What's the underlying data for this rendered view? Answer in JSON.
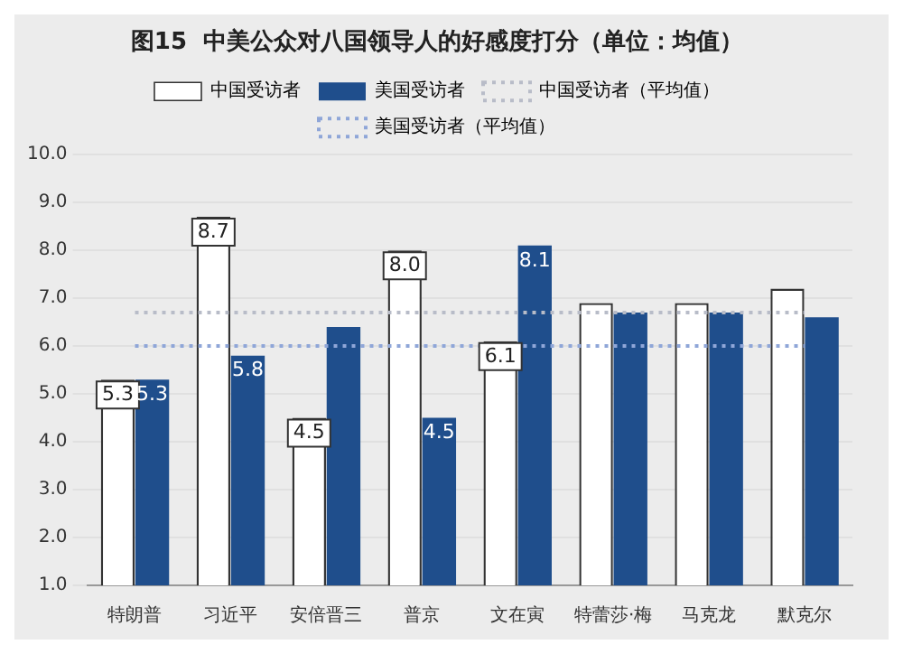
{
  "chart_data": {
    "type": "bar",
    "title": "图15  中美公众对八国领导人的好感度打分（单位：均值）",
    "categories": [
      "特朗普",
      "习近平",
      "安倍晋三",
      "普京",
      "文在寅",
      "特蕾莎·梅",
      "马克龙",
      "默克尔"
    ],
    "series": [
      {
        "name": "中国受访者",
        "color": "#ffffff",
        "values": [
          5.3,
          8.7,
          4.5,
          8.0,
          6.1,
          6.9,
          6.9,
          7.2
        ],
        "value_labels": [
          "5.3",
          "8.7",
          "4.5",
          "8.0",
          "6.1",
          null,
          null,
          null
        ]
      },
      {
        "name": "美国受访者",
        "color": "#1f4e8c",
        "values": [
          5.3,
          5.8,
          6.4,
          4.5,
          8.1,
          6.7,
          6.7,
          6.6
        ],
        "value_labels": [
          "5.3",
          "5.8",
          null,
          "4.5",
          "8.1",
          null,
          null,
          null
        ]
      }
    ],
    "ref_lines": [
      {
        "axis": "y",
        "value": 6.7,
        "label": "中国受访者（平均值）",
        "color": "#b8bcc8",
        "line_style": "dotted"
      },
      {
        "axis": "y",
        "value": 6.0,
        "label": "美国受访者（平均值）",
        "color": "#8fa6d8",
        "line_style": "dotted"
      }
    ],
    "ylim": [
      1,
      10
    ],
    "yticks": [
      {
        "value": 1,
        "label": "1.0"
      },
      {
        "value": 2,
        "label": "2.0"
      },
      {
        "value": 3,
        "label": "3.0"
      },
      {
        "value": 4,
        "label": "4.0"
      },
      {
        "value": 5,
        "label": "5.0"
      },
      {
        "value": 6,
        "label": "6.0"
      },
      {
        "value": 7,
        "label": "7.0"
      },
      {
        "value": 8,
        "label": "8.0"
      },
      {
        "value": 9,
        "label": "9.0"
      },
      {
        "value": 10,
        "label": "10.0"
      }
    ],
    "grid": "y",
    "legend": "top"
  }
}
